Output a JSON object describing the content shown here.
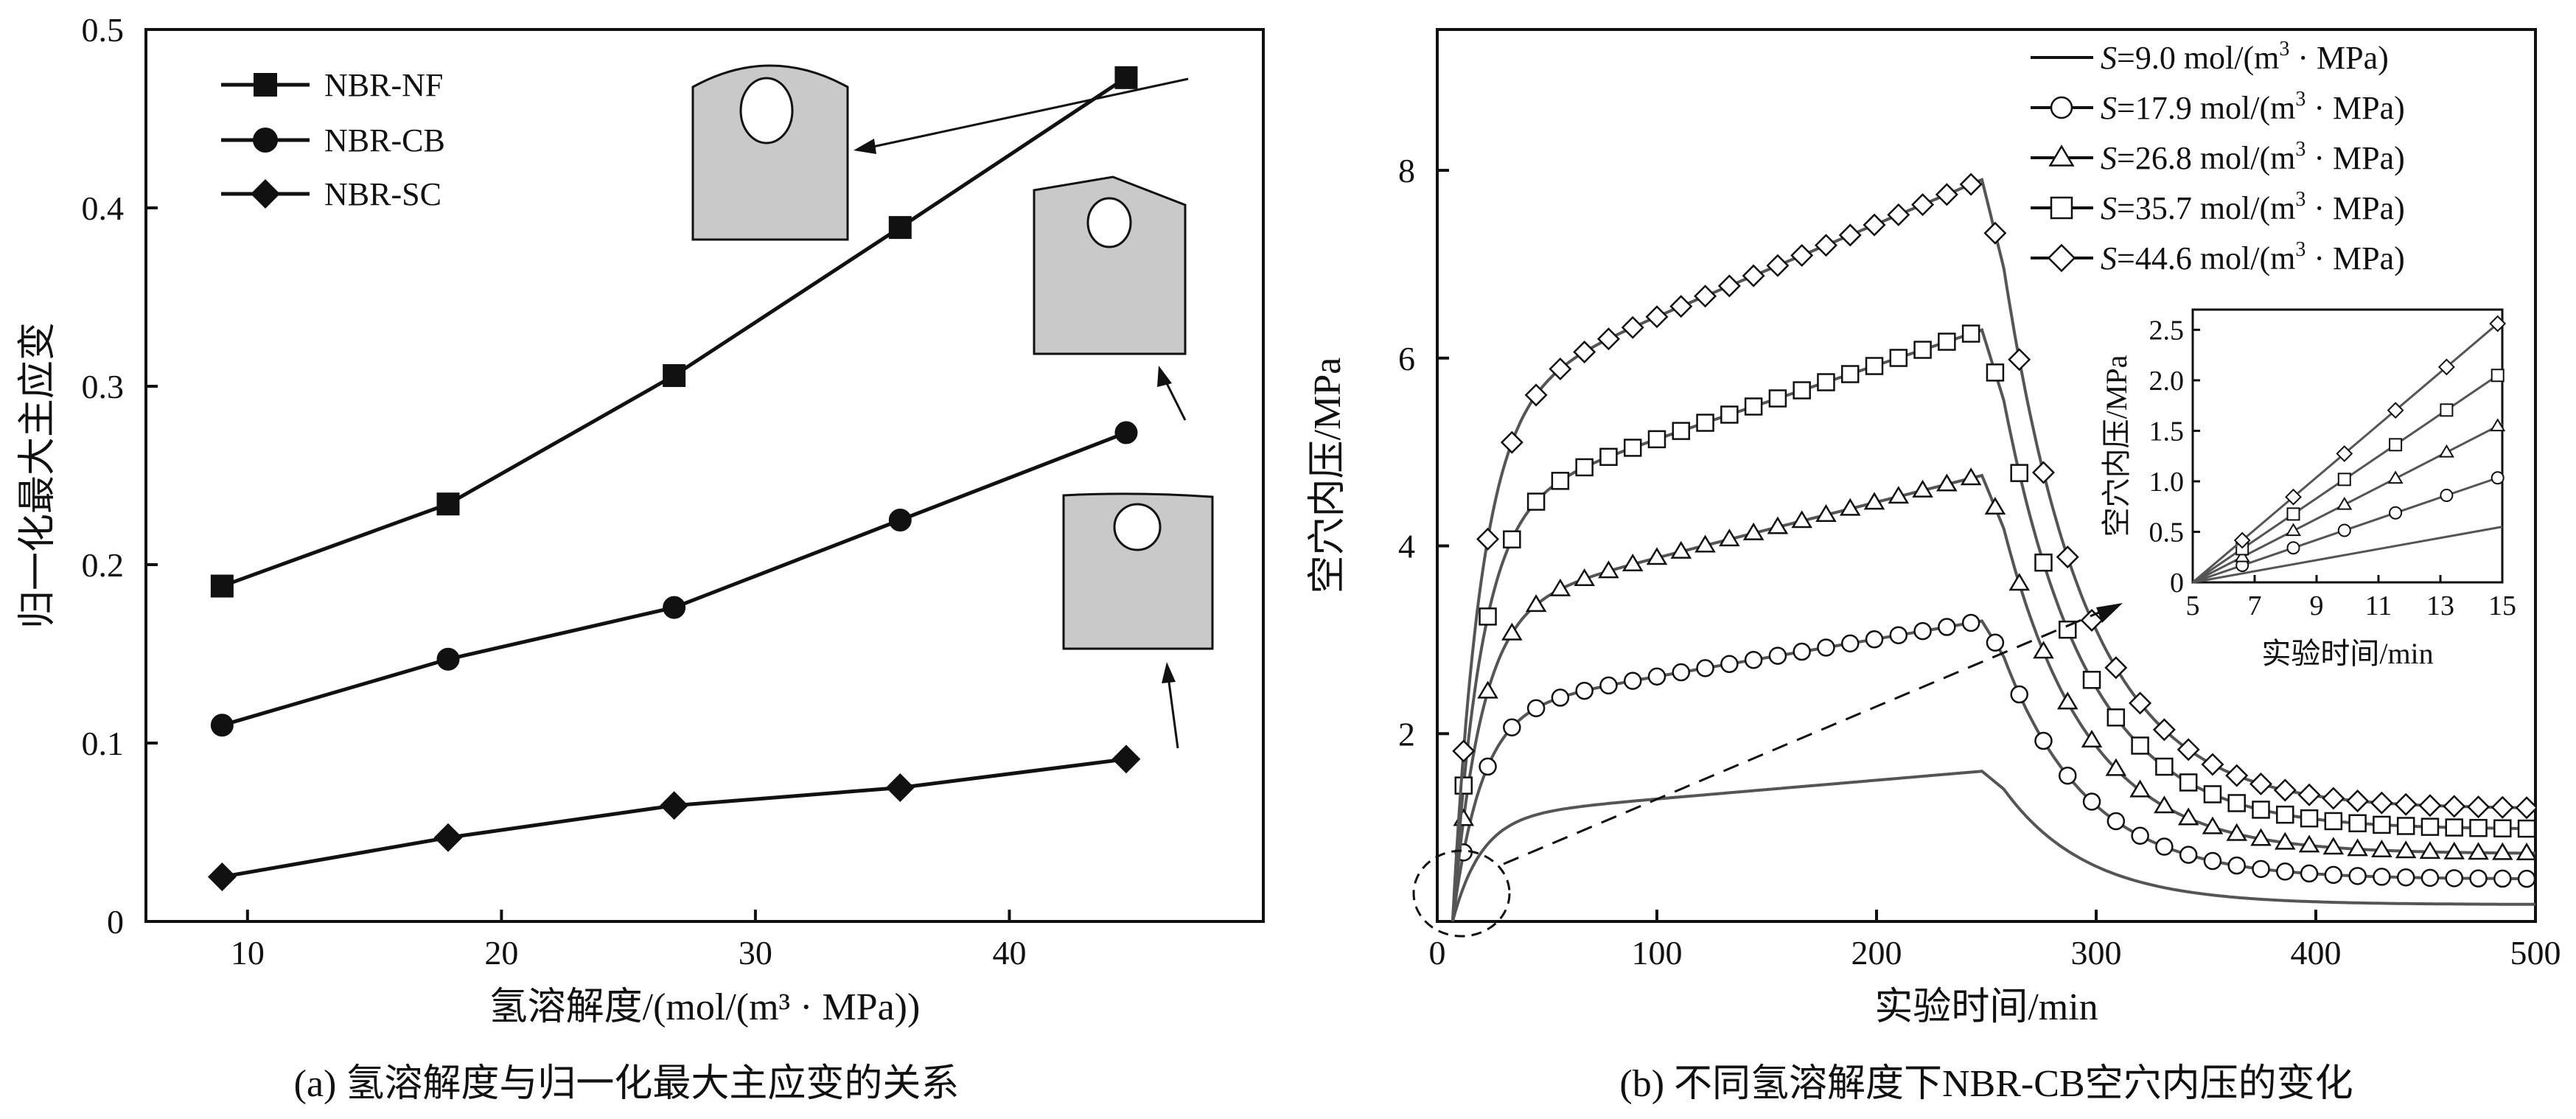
{
  "chart_data": [
    {
      "type": "line",
      "caption": "(a) 氢溶解度与归一化最大主应变的关系",
      "xlabel": "氢溶解度/(mol/(m³ · MPa))",
      "ylabel": "归一化最大主应变",
      "xlim": [
        6,
        50
      ],
      "ylim": [
        0,
        0.5
      ],
      "xticks": [
        "10",
        "20",
        "30",
        "40"
      ],
      "yticks": [
        "0",
        "0.1",
        "0.2",
        "0.3",
        "0.4",
        "0.5"
      ],
      "legend_position": "top-left",
      "grid": false,
      "x": [
        9.0,
        17.9,
        26.8,
        35.7,
        44.6
      ],
      "series": [
        {
          "name": "NBR-NF",
          "marker": "square",
          "values": [
            0.188,
            0.234,
            0.306,
            0.389,
            0.473
          ]
        },
        {
          "name": "NBR-CB",
          "marker": "circle",
          "values": [
            0.11,
            0.147,
            0.176,
            0.225,
            0.274
          ]
        },
        {
          "name": "NBR-SC",
          "marker": "diamond",
          "values": [
            0.025,
            0.047,
            0.065,
            0.075,
            0.091
          ]
        }
      ]
    },
    {
      "type": "line",
      "caption": "(b) 不同氢溶解度下NBR-CB空穴内压的变化",
      "xlabel": "实验时间/min",
      "ylabel": "空穴内压/MPa",
      "xlim": [
        0,
        500
      ],
      "ylim": [
        0,
        9.5
      ],
      "xticks": [
        "0",
        "100",
        "200",
        "300",
        "400",
        "500"
      ],
      "yticks": [
        "2",
        "4",
        "6",
        "8"
      ],
      "legend_position": "top-right",
      "grid": false,
      "series": [
        {
          "name_prefix": "S",
          "name_value": "=9.0 mol/(m",
          "name_sup": "3",
          "name_suffix": " · MPa)",
          "marker": "none",
          "peak": 1.6,
          "end": 0.18
        },
        {
          "name_prefix": "S",
          "name_value": "=17.9 mol/(m",
          "name_sup": "3",
          "name_suffix": " · MPa)",
          "marker": "circle",
          "peak": 3.2,
          "end": 0.45
        },
        {
          "name_prefix": "S",
          "name_value": "=26.8 mol/(m",
          "name_sup": "3",
          "name_suffix": " · MPa)",
          "marker": "triangle",
          "peak": 4.75,
          "end": 0.72
        },
        {
          "name_prefix": "S",
          "name_value": "=35.7 mol/(m",
          "name_sup": "3",
          "name_suffix": " · MPa)",
          "marker": "square",
          "peak": 6.3,
          "end": 0.98
        },
        {
          "name_prefix": "S",
          "name_value": "=44.6 mol/(m",
          "name_sup": "3",
          "name_suffix": " · MPa)",
          "marker": "diamond",
          "peak": 7.9,
          "end": 1.2
        }
      ],
      "inset": {
        "xlabel": "实验时间/min",
        "ylabel": "空穴内压/MPa",
        "xlim": [
          5,
          15
        ],
        "ylim": [
          0,
          2.7
        ],
        "xticks": [
          "5",
          "7",
          "9",
          "11",
          "13",
          "15"
        ],
        "yticks": [
          "0",
          "0.5",
          "1.0",
          "1.5",
          "2.0",
          "2.5"
        ],
        "end_values": [
          0.55,
          1.05,
          1.57,
          2.08,
          2.6
        ]
      }
    }
  ]
}
